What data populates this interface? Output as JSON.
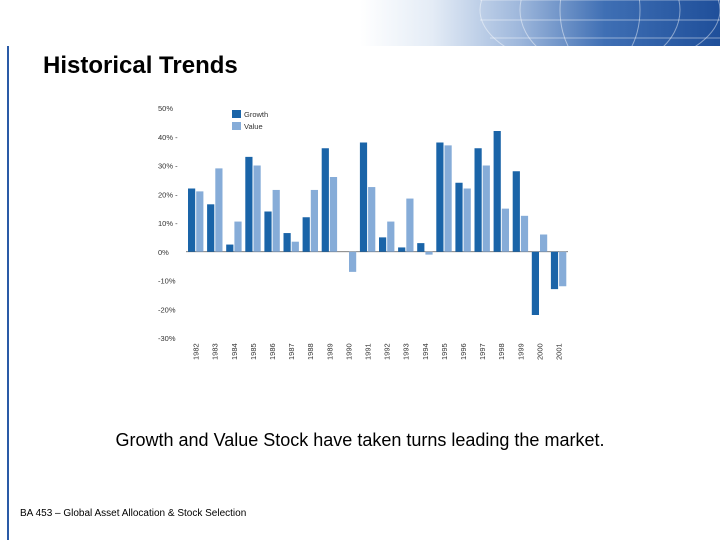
{
  "slide": {
    "title": "Historical Trends",
    "caption": "Growth and Value Stock have taken turns leading the market.",
    "footer": "BA 453 – Global Asset Allocation & Stock Selection"
  },
  "colors": {
    "growth": "#1a64a8",
    "value": "#86acd8",
    "accent": "#2a5aa6"
  },
  "chart_data": {
    "type": "bar",
    "title": "",
    "xlabel": "",
    "ylabel": "",
    "ylim": [
      -30,
      50
    ],
    "yticks": [
      50,
      40,
      30,
      20,
      10,
      0,
      -10,
      -20,
      -30
    ],
    "ytick_labels": [
      "50%",
      "40% -",
      "30% -",
      "20% -",
      "10% -",
      "0%",
      "-10%",
      "-20%",
      "-30%"
    ],
    "legend_position": "top-left",
    "categories": [
      "1982",
      "1983",
      "1984",
      "1985",
      "1986",
      "1987",
      "1988",
      "1989",
      "1990",
      "1991",
      "1992",
      "1993",
      "1994",
      "1995",
      "1996",
      "1997",
      "1998",
      "1999",
      "2000",
      "2001"
    ],
    "series": [
      {
        "name": "Growth",
        "color": "#1a64a8",
        "values": [
          22,
          16.5,
          2.5,
          33,
          14,
          6.5,
          12,
          36,
          0,
          38,
          5,
          1.5,
          3,
          38,
          24,
          36,
          42,
          28,
          -22,
          -13
        ]
      },
      {
        "name": "Value",
        "color": "#86acd8",
        "values": [
          21,
          29,
          10.5,
          30,
          21.5,
          3.5,
          21.5,
          26,
          -7,
          22.5,
          10.5,
          18.5,
          -1,
          37,
          22,
          30,
          15,
          12.5,
          6,
          -12
        ]
      }
    ]
  }
}
